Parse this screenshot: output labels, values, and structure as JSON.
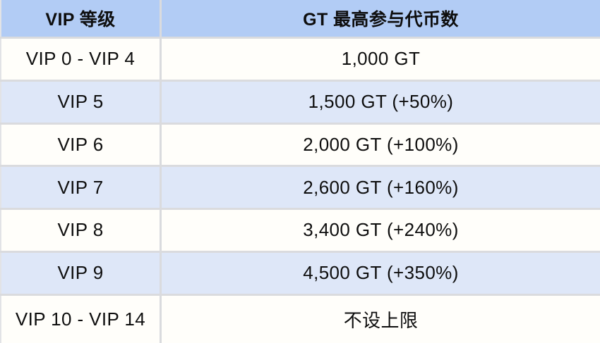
{
  "table": {
    "columns": [
      {
        "label": "VIP 等级"
      },
      {
        "label": "GT 最高参与代币数"
      }
    ],
    "rows": [
      {
        "level": "VIP 0 - VIP 4",
        "amount": "1,000 GT"
      },
      {
        "level": "VIP 5",
        "amount": "1,500 GT (+50%)"
      },
      {
        "level": "VIP 6",
        "amount": "2,000 GT (+100%)"
      },
      {
        "level": "VIP 7",
        "amount": "2,600 GT (+160%)"
      },
      {
        "level": "VIP 8",
        "amount": "3,400 GT (+240%)"
      },
      {
        "level": "VIP 9",
        "amount": "4,500 GT (+350%)"
      },
      {
        "level": "VIP 10 - VIP 14",
        "amount": "不设上限"
      }
    ],
    "colors": {
      "header_bg": "#b2ccf5",
      "row_bg": "#fffefa",
      "row_alt_bg": "#dee7f8",
      "separator": "#dadbde",
      "text": "#0e0e0e"
    }
  },
  "chart_data": {
    "type": "table",
    "columns": [
      "VIP 等级",
      "GT 最高参与代币数"
    ],
    "rows": [
      [
        "VIP 0 - VIP 4",
        "1,000 GT"
      ],
      [
        "VIP 5",
        "1,500 GT (+50%)"
      ],
      [
        "VIP 6",
        "2,000 GT (+100%)"
      ],
      [
        "VIP 7",
        "2,600 GT (+160%)"
      ],
      [
        "VIP 8",
        "3,400 GT (+240%)"
      ],
      [
        "VIP 9",
        "4,500 GT (+350%)"
      ],
      [
        "VIP 10 - VIP 14",
        "不设上限"
      ]
    ]
  }
}
